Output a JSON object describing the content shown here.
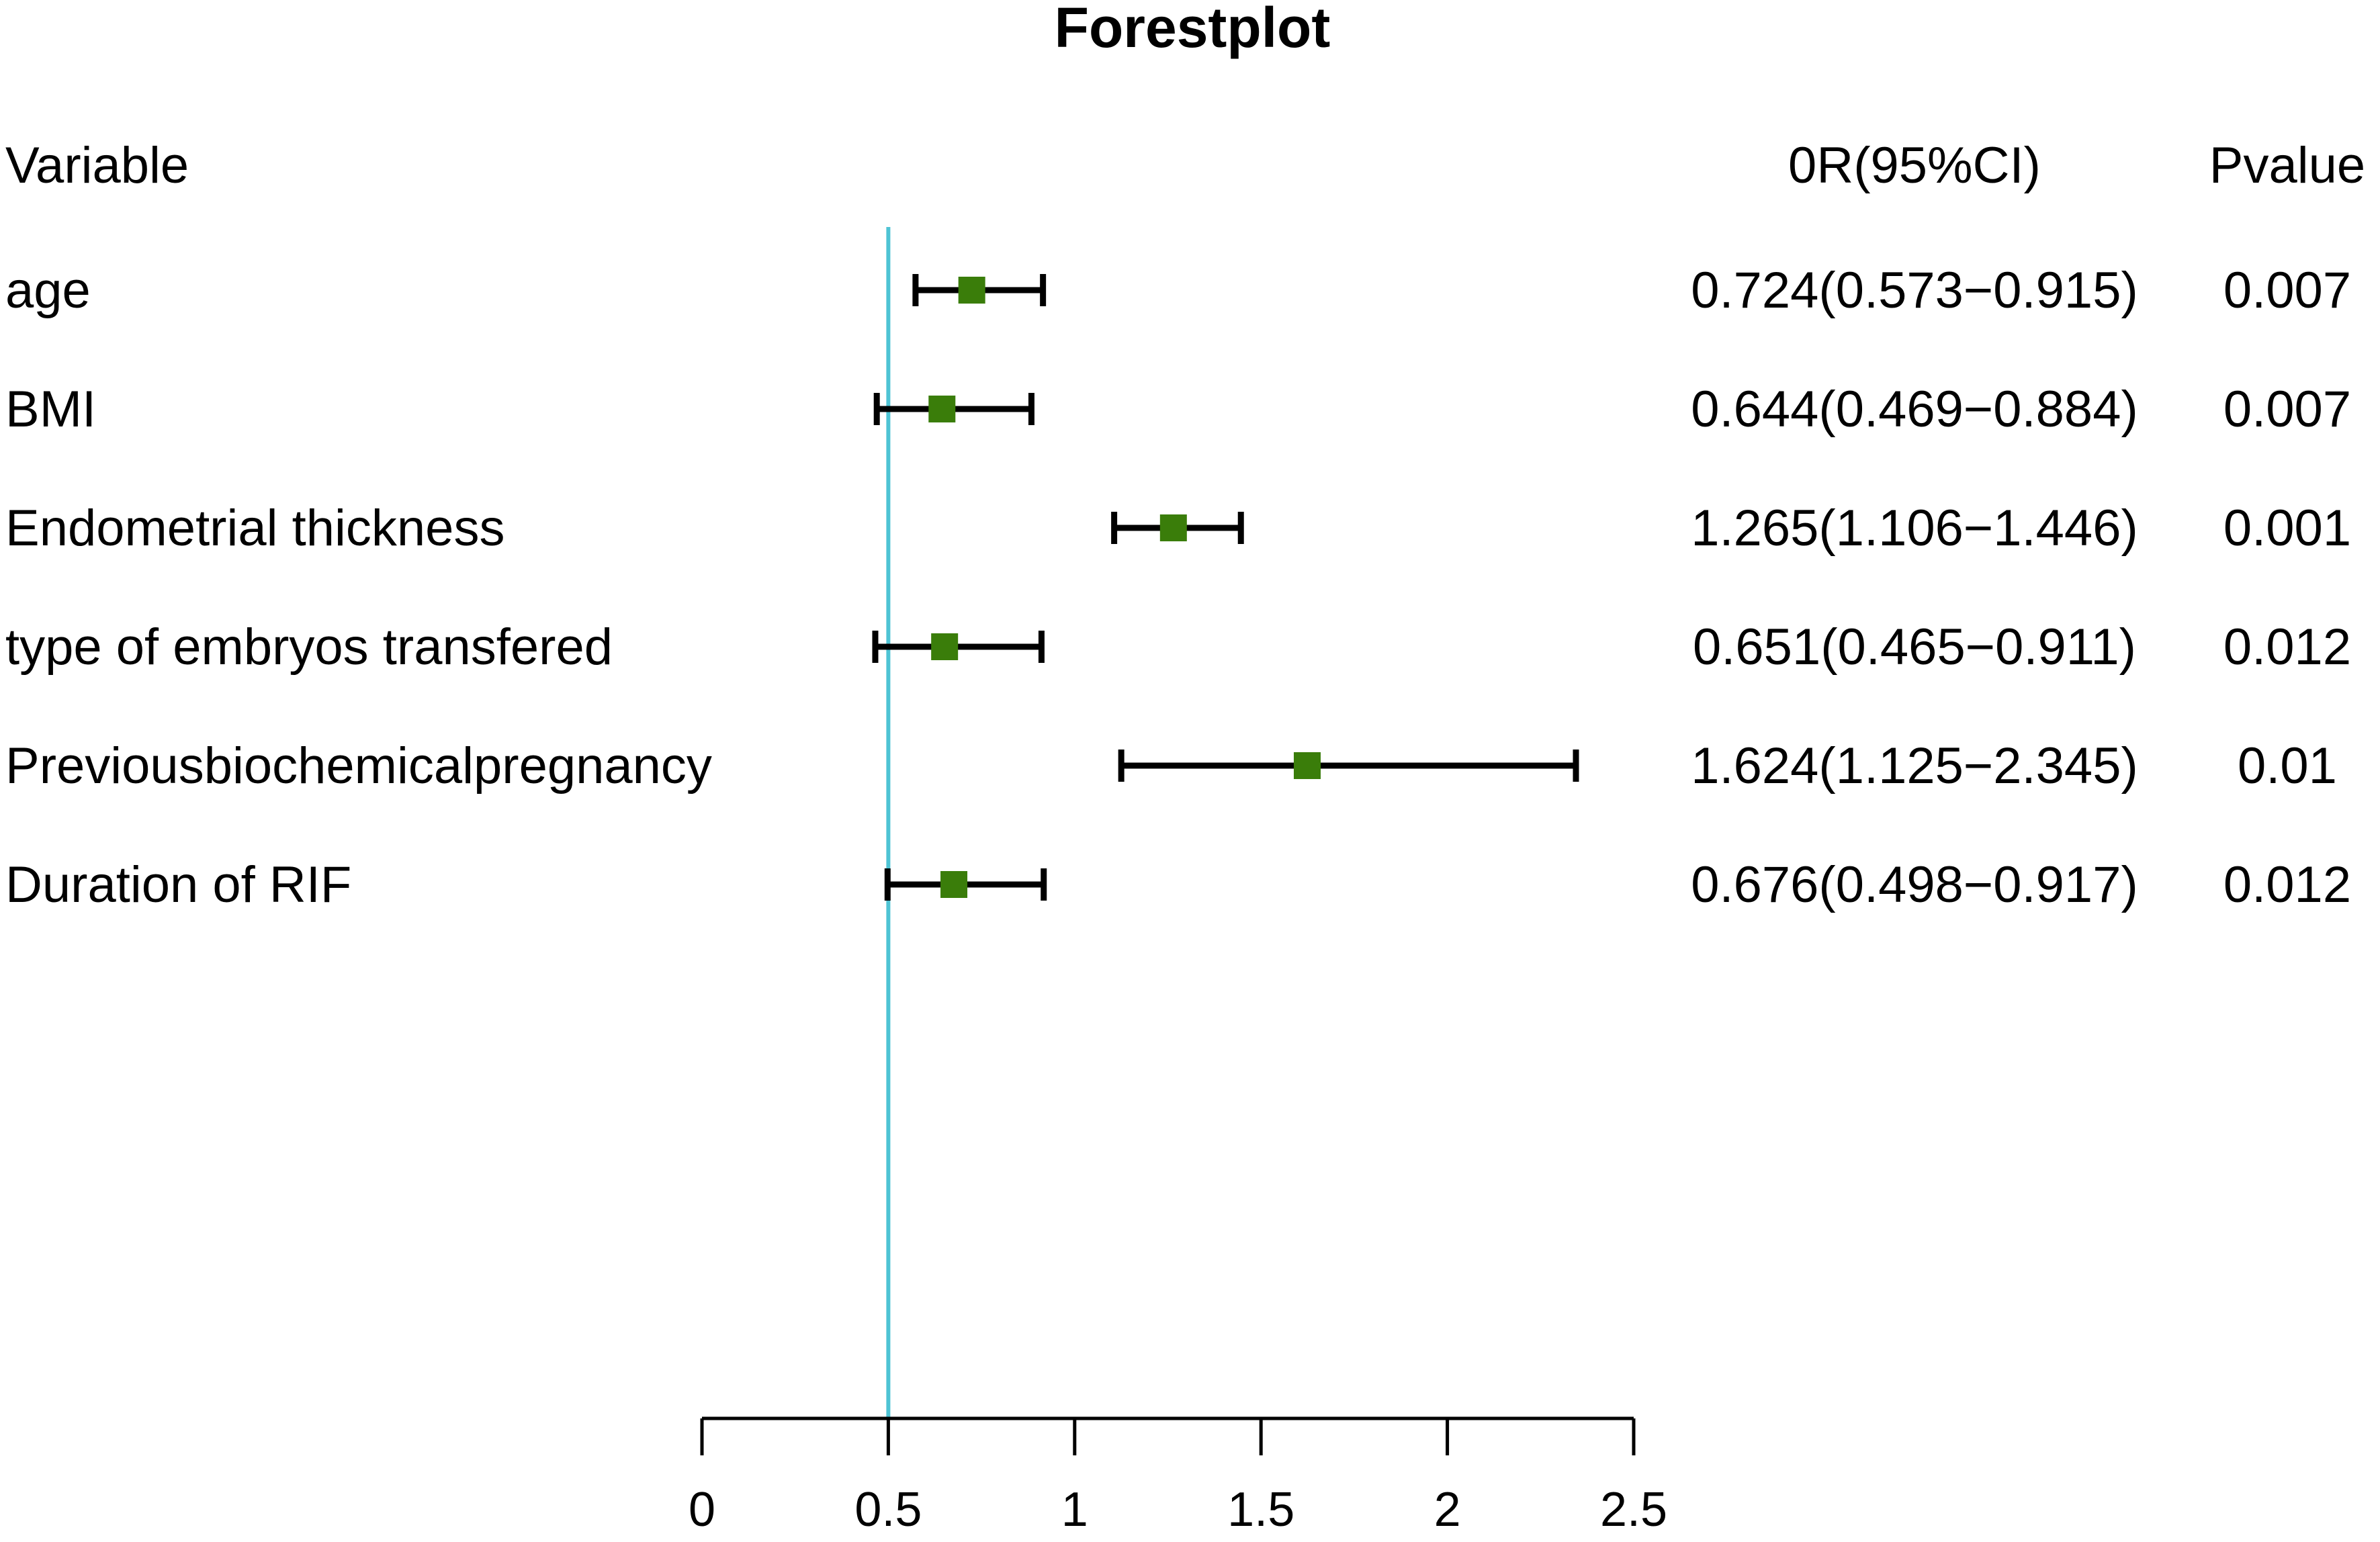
{
  "chart_data": {
    "type": "forest",
    "title": "Forestplot",
    "columns": {
      "variable": "Variable",
      "or": "0R(95%CI)",
      "p": "Pvalue"
    },
    "rows": [
      {
        "variable": "age",
        "or": 0.724,
        "lower": 0.573,
        "upper": 0.915,
        "or_label": "0.724(0.573−0.915)",
        "p": "0.007"
      },
      {
        "variable": "BMI",
        "or": 0.644,
        "lower": 0.469,
        "upper": 0.884,
        "or_label": "0.644(0.469−0.884)",
        "p": "0.007"
      },
      {
        "variable": "Endometrial thickness",
        "or": 1.265,
        "lower": 1.106,
        "upper": 1.446,
        "or_label": "1.265(1.106−1.446)",
        "p": "0.001"
      },
      {
        "variable": "type of embryos transfered",
        "or": 0.651,
        "lower": 0.465,
        "upper": 0.911,
        "or_label": "0.651(0.465−0.911)",
        "p": "0.012"
      },
      {
        "variable": "Previousbiochemicalpregnancy",
        "or": 1.624,
        "lower": 1.125,
        "upper": 2.345,
        "or_label": "1.624(1.125−2.345)",
        "p": "0.01"
      },
      {
        "variable": "Duration of RIF",
        "or": 0.676,
        "lower": 0.498,
        "upper": 0.917,
        "or_label": "0.676(0.498−0.917)",
        "p": "0.012"
      }
    ],
    "x_axis": {
      "range": [
        0,
        2.5
      ],
      "ticks": [
        0,
        0.5,
        1,
        1.5,
        2,
        2.5
      ],
      "tick_labels": [
        "0",
        "0.5",
        "1",
        "1.5",
        "2",
        "2.5"
      ]
    },
    "reference_line": 0.5,
    "colors": {
      "box": "#3a7d0a",
      "whisker": "#000000",
      "reference": "#4ec3d4",
      "text": "#000000"
    }
  }
}
